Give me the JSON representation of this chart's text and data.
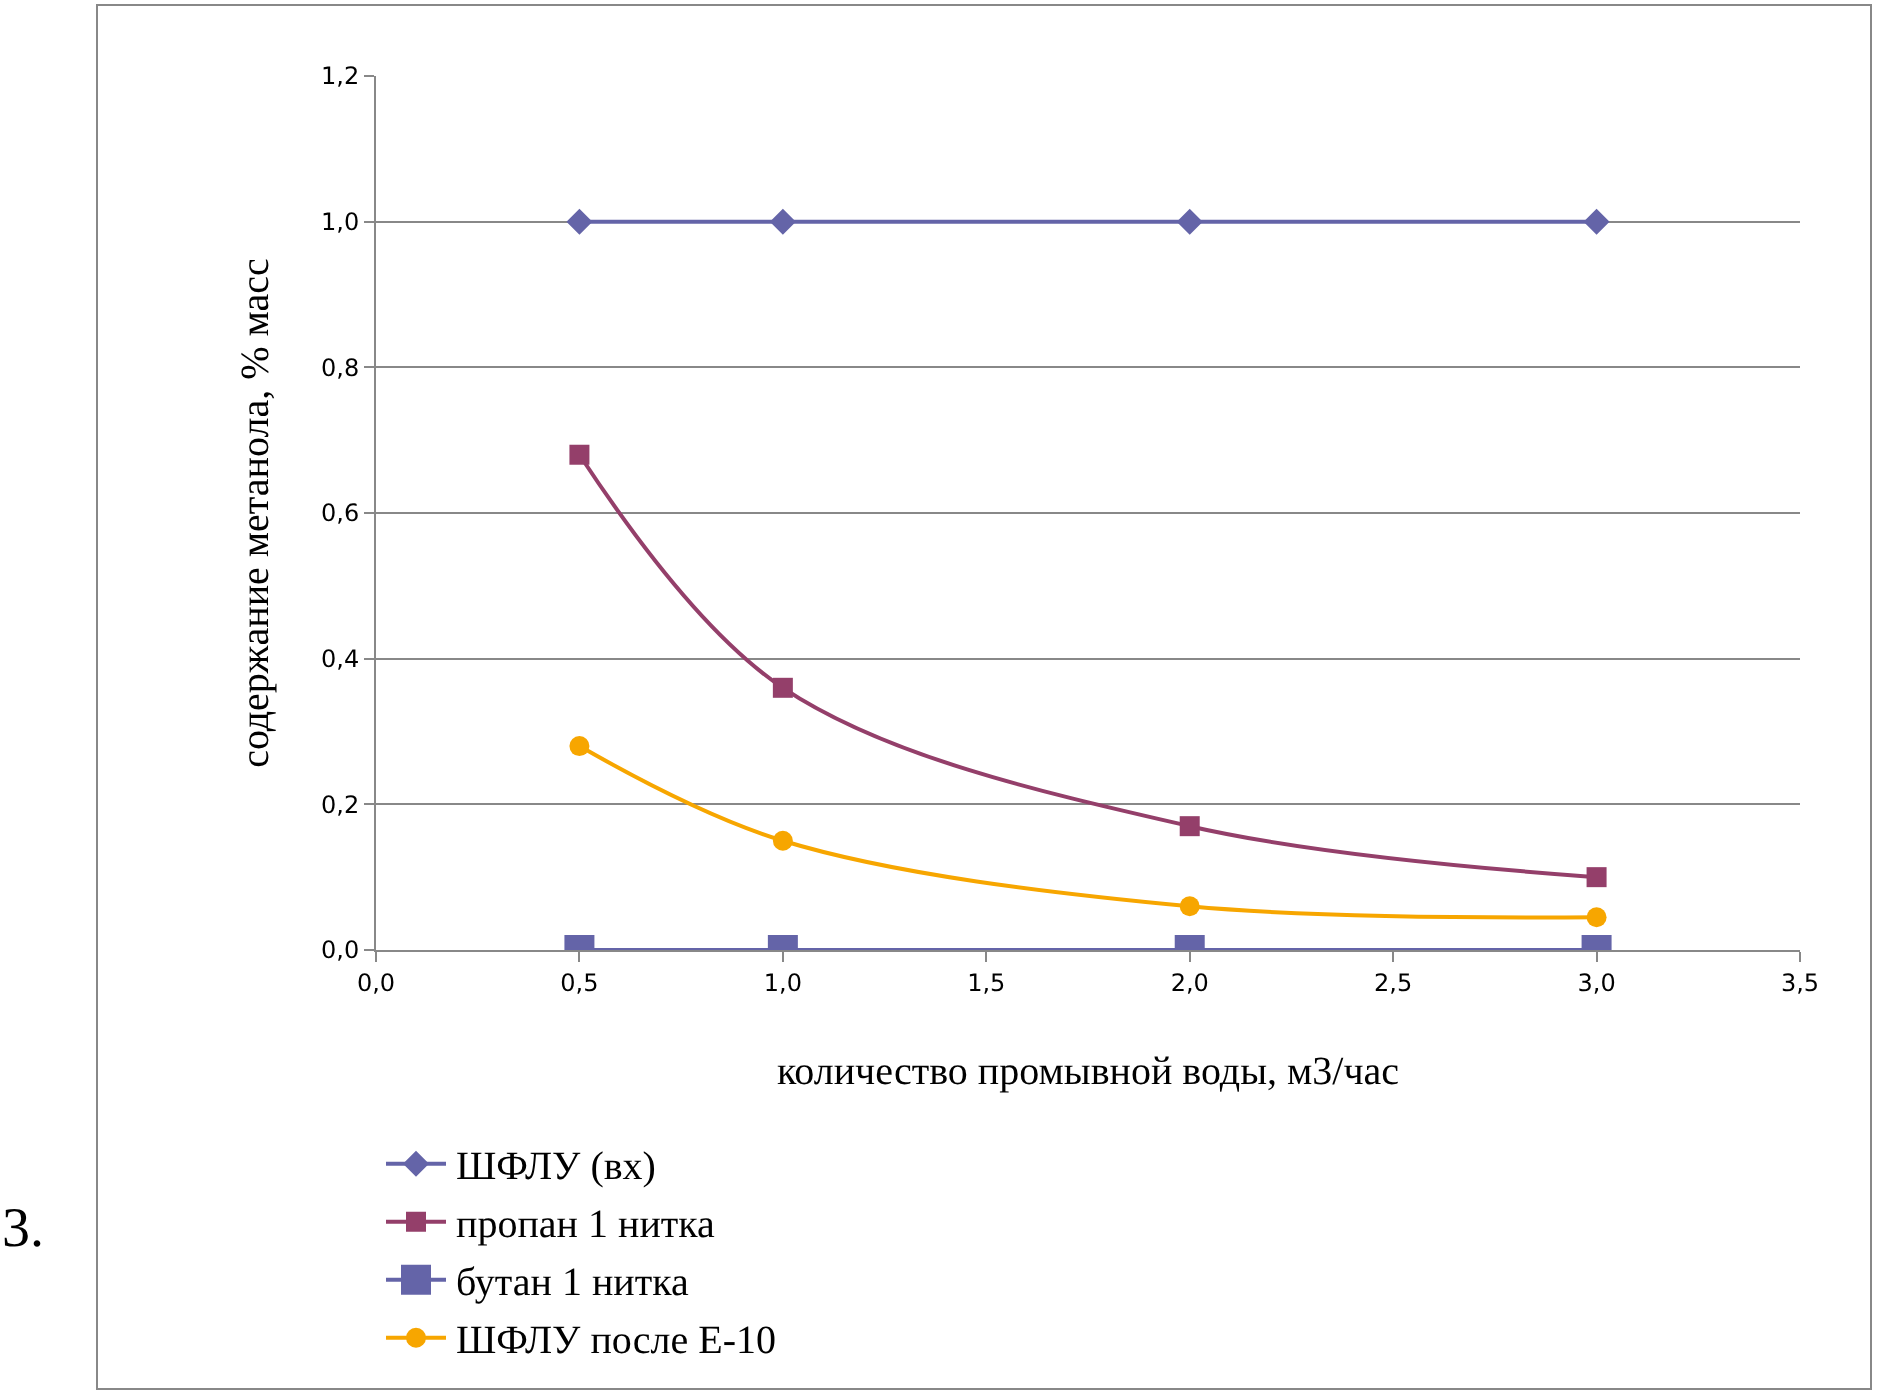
{
  "chart_data": {
    "type": "line",
    "xlabel": "количество промывной воды, м3/час",
    "ylabel": "содержание метанола, % масс",
    "x": [
      0.5,
      1.0,
      2.0,
      3.0
    ],
    "series": [
      {
        "name": "ШФЛУ (вх)",
        "color": "#6464a8",
        "marker": "diamond",
        "values": [
          1.0,
          1.0,
          1.0,
          1.0
        ]
      },
      {
        "name": "пропан 1 нитка",
        "color": "#943f6a",
        "marker": "square",
        "values": [
          0.68,
          0.36,
          0.17,
          0.1
        ]
      },
      {
        "name": "бутан 1 нитка",
        "color": "#6464a8",
        "marker": "square",
        "values": [
          0.0,
          0.0,
          0.0,
          0.0
        ]
      },
      {
        "name": "ШФЛУ после Е-10",
        "color": "#f7a600",
        "marker": "circle",
        "values": [
          0.28,
          0.15,
          0.06,
          0.045
        ]
      }
    ],
    "xlim": [
      0,
      3.5
    ],
    "xticks": [
      {
        "value": 0,
        "label": "0,0"
      },
      {
        "value": 0.5,
        "label": "0,5"
      },
      {
        "value": 1,
        "label": "1,0"
      },
      {
        "value": 1.5,
        "label": "1,5"
      },
      {
        "value": 2,
        "label": "2,0"
      },
      {
        "value": 2.5,
        "label": "2,5"
      },
      {
        "value": 3,
        "label": "3,0"
      },
      {
        "value": 3.5,
        "label": "3,5"
      }
    ],
    "ylim": [
      0,
      1.2
    ],
    "yticks": [
      {
        "value": 0,
        "label": "0,0"
      },
      {
        "value": 0.2,
        "label": "0,2"
      },
      {
        "value": 0.4,
        "label": "0,4"
      },
      {
        "value": 0.6,
        "label": "0,6"
      },
      {
        "value": 0.8,
        "label": "0,8"
      },
      {
        "value": 1,
        "label": "1,0"
      },
      {
        "value": 1.2,
        "label": "1,2"
      }
    ],
    "grid": "y",
    "legend": "bottom",
    "annotations": [
      "3."
    ]
  }
}
